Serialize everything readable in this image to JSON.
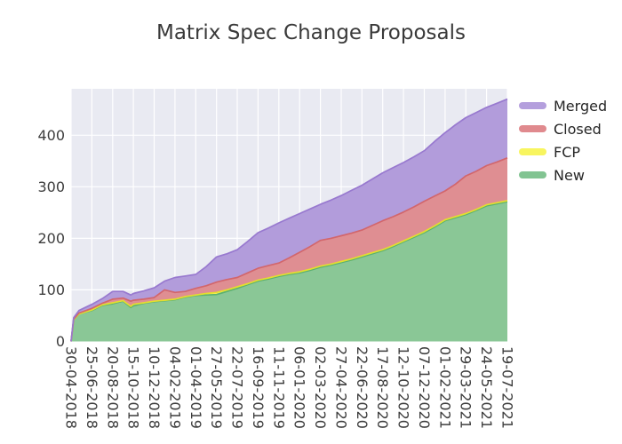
{
  "title": "Matrix Spec Change Proposals",
  "legend": {
    "position": "right-top",
    "items": [
      {
        "label": "Merged",
        "color": "#b49fdd"
      },
      {
        "label": "Closed",
        "color": "#e08a8e"
      },
      {
        "label": "FCP",
        "color": "#f8f55f"
      },
      {
        "label": "New",
        "color": "#82c492"
      }
    ]
  },
  "chart_data": {
    "type": "area",
    "stacked": true,
    "title": "Matrix Spec Change Proposals",
    "xlabel": "",
    "ylabel": "",
    "ylim": [
      0,
      490
    ],
    "y_ticks": [
      0,
      100,
      200,
      300,
      400
    ],
    "grid": true,
    "grid_color": "#ffffff",
    "plot_bg": "#e9eaf2",
    "tick_label_color": "#3d3d3d",
    "x_tick_labels": [
      "30-04-2018",
      "25-06-2018",
      "20-08-2018",
      "15-10-2018",
      "10-12-2018",
      "04-02-2019",
      "01-04-2019",
      "27-05-2019",
      "22-07-2019",
      "16-09-2019",
      "11-11-2019",
      "06-01-2020",
      "02-03-2020",
      "27-04-2020",
      "22-06-2020",
      "17-08-2020",
      "12-10-2020",
      "07-12-2020",
      "01-02-2021",
      "29-03-2021",
      "24-05-2021",
      "19-07-2021"
    ],
    "x": [
      "30-04-2018",
      "07-05-2018",
      "21-05-2018",
      "25-06-2018",
      "23-07-2018",
      "20-08-2018",
      "17-09-2018",
      "08-10-2018",
      "15-10-2018",
      "12-11-2018",
      "10-12-2018",
      "07-01-2019",
      "04-02-2019",
      "04-03-2019",
      "01-04-2019",
      "29-04-2019",
      "27-05-2019",
      "24-06-2019",
      "22-07-2019",
      "19-08-2019",
      "16-09-2019",
      "14-10-2019",
      "11-11-2019",
      "09-12-2019",
      "06-01-2020",
      "03-02-2020",
      "02-03-2020",
      "30-03-2020",
      "27-04-2020",
      "25-05-2020",
      "22-06-2020",
      "20-07-2020",
      "17-08-2020",
      "14-09-2020",
      "12-10-2020",
      "09-11-2020",
      "07-12-2020",
      "04-01-2021",
      "01-02-2021",
      "01-03-2021",
      "29-03-2021",
      "26-04-2021",
      "24-05-2021",
      "21-06-2021",
      "19-07-2021"
    ],
    "series": [
      {
        "name": "New",
        "fill": "#8ac796",
        "stroke": "#5cb170",
        "values": [
          0,
          42,
          53,
          60,
          70,
          73,
          78,
          66,
          69,
          74,
          77,
          79,
          81,
          86,
          89,
          90,
          91,
          97,
          103,
          110,
          117,
          121,
          126,
          130,
          133,
          138,
          144,
          148,
          153,
          158,
          164,
          170,
          176,
          184,
          193,
          202,
          211,
          222,
          234,
          240,
          246,
          254,
          263,
          267,
          271
        ]
      },
      {
        "name": "FCP",
        "fill": "#f8f45e",
        "stroke": "#e3df2e",
        "values": [
          0,
          0,
          0,
          1,
          1,
          2,
          1,
          2,
          3,
          1,
          1,
          1,
          1,
          1,
          1,
          3,
          4,
          3,
          3,
          2,
          2,
          2,
          2,
          2,
          2,
          2,
          2,
          2,
          2,
          2,
          2,
          2,
          2,
          2,
          2,
          2,
          2,
          2,
          2,
          2,
          2,
          2,
          2,
          2,
          2
        ]
      },
      {
        "name": "Closed",
        "fill": "#df8e92",
        "stroke": "#d2666c",
        "values": [
          0,
          1,
          2,
          3,
          3,
          7,
          5,
          10,
          8,
          7,
          7,
          20,
          13,
          10,
          13,
          15,
          20,
          20,
          18,
          21,
          23,
          24,
          24,
          30,
          38,
          44,
          50,
          50,
          50,
          50,
          50,
          53,
          56,
          56,
          56,
          57,
          59,
          58,
          56,
          63,
          73,
          74,
          76,
          79,
          83
        ]
      },
      {
        "name": "Merged",
        "fill": "#b29cdb",
        "stroke": "#9879cf",
        "values": [
          0,
          3,
          5,
          8,
          9,
          15,
          13,
          12,
          13,
          16,
          19,
          17,
          29,
          30,
          27,
          37,
          49,
          50,
          54,
          61,
          69,
          73,
          78,
          77,
          75,
          73,
          70,
          74,
          78,
          83,
          87,
          90,
          93,
          95,
          96,
          97,
          98,
          106,
          113,
          115,
          113,
          114,
          113,
          114,
          114
        ]
      }
    ]
  }
}
